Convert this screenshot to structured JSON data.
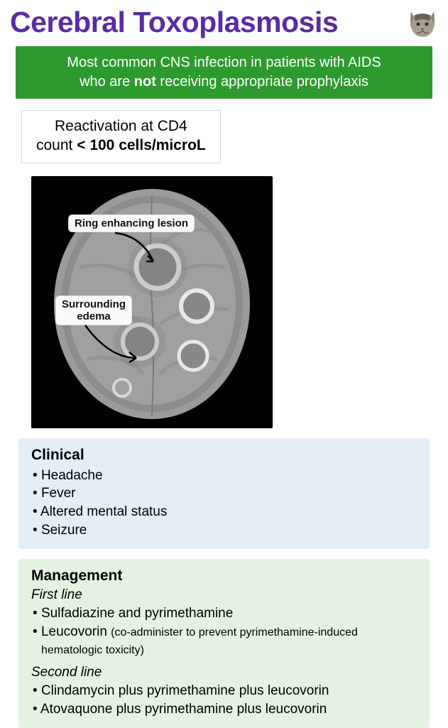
{
  "title": {
    "text": "Cerebral Toxoplasmosis",
    "color": "#5a2ca0"
  },
  "banner": {
    "line1": "Most common CNS infection in patients with AIDS",
    "line2_pre": "who are ",
    "line2_bold": "not",
    "line2_post": " receiving appropriate prophylaxis",
    "background": "#2e9a2e"
  },
  "reactivation": {
    "line1": "Reactivation at CD4",
    "line2_pre": "count ",
    "line2_bold": "< 100 cells/microL"
  },
  "brain": {
    "annotation1": "Ring enhancing lesion",
    "annotation2_line1": "Surrounding",
    "annotation2_line2": "edema"
  },
  "clinical": {
    "heading": "Clinical",
    "background": "#e3eef6",
    "items": [
      "Headache",
      "Fever",
      "Altered mental status",
      "Seizure"
    ]
  },
  "management": {
    "heading": "Management",
    "background": "#e4f3e1",
    "first_label": "First line",
    "first_items": [
      {
        "main": "Sulfadiazine and pyrimethamine"
      },
      {
        "main": "Leucovorin ",
        "paren": "(co-administer to prevent pyrimethamine-induced hematologic toxicity)"
      }
    ],
    "second_label": "Second line",
    "second_items": [
      {
        "main": "Clindamycin plus pyrimethamine plus leucovorin"
      },
      {
        "main": "Atovaquone plus pyrimethamine plus leucovorin"
      }
    ]
  }
}
